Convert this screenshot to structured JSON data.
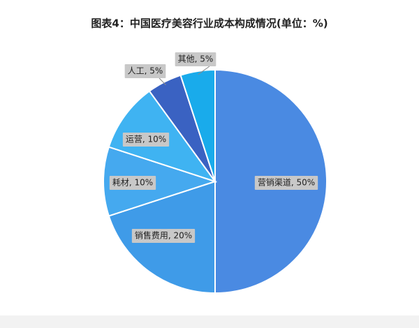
{
  "chart_data": {
    "type": "pie",
    "title": "图表4：中国医疗美容行业成本构成情况(单位：%)",
    "values": [
      50,
      20,
      10,
      10,
      5,
      5
    ],
    "value_labels": [
      "营销渠道, 50%",
      "销售费用, 20%",
      "耗材, 10%",
      "运营, 10%",
      "人工, 5%",
      "其他, 5%"
    ],
    "colors": [
      "#4a8ae2",
      "#3f9be8",
      "#45a9ef",
      "#3fb3f2",
      "#3a62c2",
      "#19abeb"
    ]
  }
}
